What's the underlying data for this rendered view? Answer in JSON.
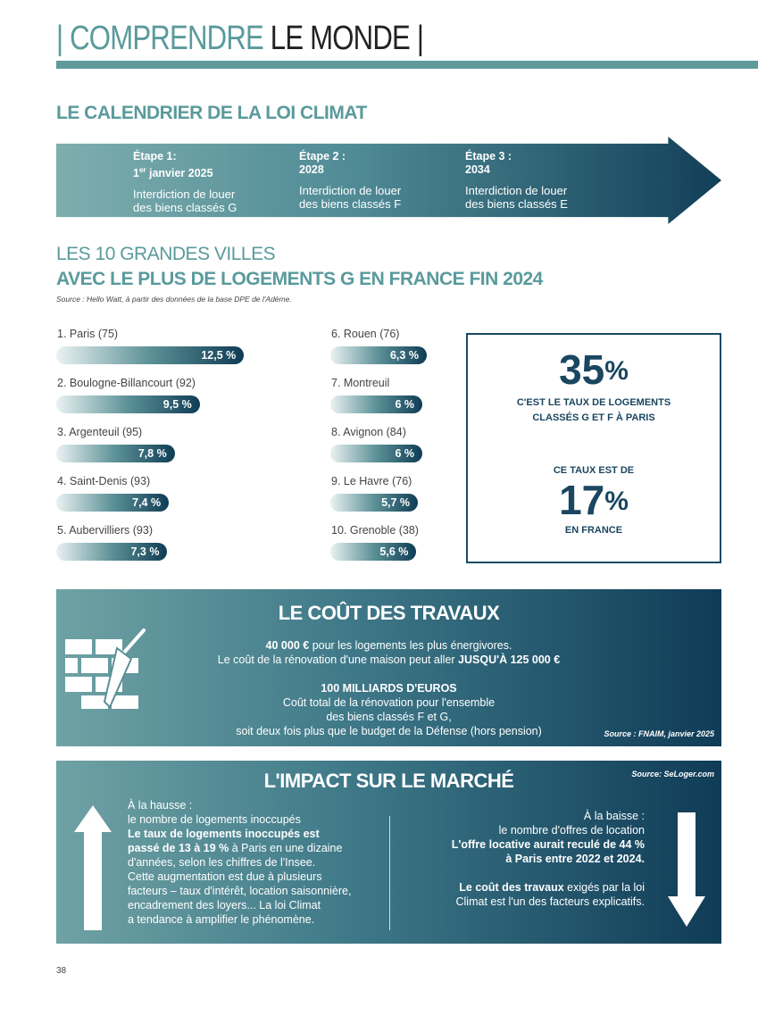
{
  "header": {
    "part1": "| COMPRENDRE",
    "part2": " LE MONDE |"
  },
  "calendar": {
    "title": "LE CALENDRIER DE LA LOI CLIMAT",
    "steps": [
      {
        "label": "Étape 1:",
        "date_num": "1",
        "date_sup": "er",
        "date_rest": " janvier 2025",
        "text1": "Interdiction de louer",
        "text2": "des biens classés G"
      },
      {
        "label": "Étape 2 :",
        "date": "2028",
        "text1": "Interdiction de louer",
        "text2": "des biens classés F"
      },
      {
        "label": "Étape 3 :",
        "date": "2034",
        "text1": "Interdiction de louer",
        "text2": "des biens classés E"
      }
    ]
  },
  "cities": {
    "title1": "LES 10 GRANDES VILLES",
    "title2": "AVEC LE PLUS DE LOGEMENTS G EN FRANCE FIN 2024",
    "source": "Source : Hello Watt, à partir des données de la base DPE de l'Adème.",
    "items": [
      {
        "name": "1. Paris (75)",
        "value": 12.5,
        "label": "12,5 %"
      },
      {
        "name": "2. Boulogne-Billancourt (92)",
        "value": 9.5,
        "label": "9,5 %"
      },
      {
        "name": "3. Argenteuil (95)",
        "value": 7.8,
        "label": "7,8 %"
      },
      {
        "name": "4. Saint-Denis (93)",
        "value": 7.4,
        "label": "7,4 %"
      },
      {
        "name": "5. Aubervilliers (93)",
        "value": 7.3,
        "label": "7,3 %"
      },
      {
        "name": "6. Rouen (76)",
        "value": 6.3,
        "label": "6,3 %"
      },
      {
        "name": "7. Montreuil",
        "value": 6,
        "label": "6 %"
      },
      {
        "name": "8. Avignon (84)",
        "value": 6,
        "label": "6 %"
      },
      {
        "name": "9. Le Havre (76)",
        "value": 5.7,
        "label": "5,7 %"
      },
      {
        "name": "10. Grenoble (38)",
        "value": 5.6,
        "label": "5,6 %"
      }
    ]
  },
  "stats": {
    "paris_value": "35",
    "paris_unit": "%",
    "paris_line1": "C'EST LE TAUX DE LOGEMENTS",
    "paris_line2": "CLASSÉS G ET F À PARIS",
    "france_intro": "CE TAUX EST DE",
    "france_value": "17",
    "france_unit": "%",
    "france_label": "EN FRANCE"
  },
  "cost": {
    "title": "LE COÛT DES TRAVAUX",
    "b1": "40 000 €",
    "t1": " pour les logements les plus énergivores.",
    "t2": "Le coût de la rénovation d'une maison peut aller ",
    "b2": "JUSQU'À 125 000 €",
    "b3": "100 MILLIARDS D'EUROS",
    "t3": "Coût total de la rénovation pour l'ensemble",
    "t4": "des biens classés F et G,",
    "t5": "soit deux fois plus que le budget de la Défense (hors pension)",
    "source": "Source : FNAIM, janvier 2025"
  },
  "market": {
    "title": "L'IMPACT SUR LE MARCHÉ",
    "source": "Source: SeLoger.com",
    "left": {
      "l1": "À la hausse :",
      "l2": "le nombre de logements inoccupés",
      "b1": "Le taux de logements inoccupés est",
      "b2": "passé de 13 à 19 %",
      "l3": " à Paris en une dizaine",
      "l4": "d'années, selon les chiffres de l'Insee.",
      "l5": "Cette augmentation est due à plusieurs",
      "l6": "facteurs – taux d'intérêt, location saisonnière,",
      "l7": "encadrement des loyers... La loi Climat",
      "l8": "a tendance à amplifier le phénomène."
    },
    "right": {
      "l1": "À la baisse :",
      "l2": "le nombre d'offres de location",
      "b1": "L'offre locative aurait reculé de 44 %",
      "b2": "à Paris entre 2022 et 2024.",
      "b3": "Le coût des travaux",
      "l3": " exigés par la loi",
      "l4": "Climat est l'un des facteurs explicatifs."
    }
  },
  "page_number": "38"
}
